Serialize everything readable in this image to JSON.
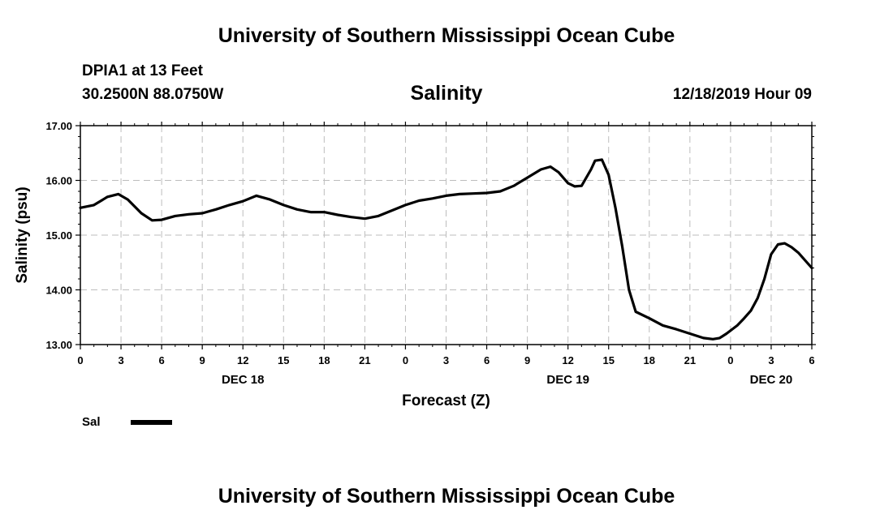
{
  "header": {
    "title": "University of Southern Mississippi Ocean Cube",
    "station": "DPIA1 at 13 Feet",
    "coords": "30.2500N 88.0750W",
    "datetime": "12/18/2019 Hour 09"
  },
  "footer": {
    "title": "University of Southern Mississippi Ocean Cube"
  },
  "chart_data": {
    "type": "line",
    "title": "Salinity",
    "xlabel": "Forecast (Z)",
    "ylabel": "Salinity (psu)",
    "ylim": [
      13.0,
      17.0
    ],
    "yticks": [
      "13.00",
      "14.00",
      "15.00",
      "16.00",
      "17.00"
    ],
    "xlim": [
      0,
      54
    ],
    "xticks": [
      "0",
      "3",
      "6",
      "9",
      "12",
      "15",
      "18",
      "21",
      "0",
      "3",
      "6",
      "9",
      "12",
      "15",
      "18",
      "21",
      "0",
      "3",
      "6"
    ],
    "day_labels": [
      {
        "label": "DEC 18",
        "hour": 12
      },
      {
        "label": "DEC 19",
        "hour": 36
      },
      {
        "label": "DEC 20",
        "hour": 51
      }
    ],
    "grid": true,
    "legend": {
      "label": "Sal",
      "position": "bottom-left"
    },
    "series": [
      {
        "name": "Sal",
        "color": "#000000",
        "x": [
          0,
          1,
          2,
          2.8,
          3.5,
          4.5,
          5.3,
          6,
          7,
          8,
          9,
          10,
          11,
          12,
          13,
          14,
          15,
          16,
          17,
          18,
          19,
          20,
          21,
          22,
          23,
          24,
          25,
          26,
          27,
          28,
          29,
          30,
          31,
          32,
          33,
          34,
          34.7,
          35.3,
          36,
          36.5,
          37,
          37.7,
          38,
          38.5,
          39,
          39.5,
          40,
          40.5,
          41,
          42,
          43,
          44,
          45,
          46,
          46.7,
          47.2,
          47.7,
          48.5,
          49,
          49.5,
          50,
          50.5,
          51,
          51.5,
          52,
          52.5,
          53,
          54
        ],
        "y": [
          15.5,
          15.55,
          15.7,
          15.75,
          15.65,
          15.4,
          15.27,
          15.28,
          15.35,
          15.38,
          15.4,
          15.47,
          15.55,
          15.62,
          15.72,
          15.65,
          15.55,
          15.47,
          15.42,
          15.42,
          15.37,
          15.33,
          15.3,
          15.35,
          15.45,
          15.55,
          15.63,
          15.67,
          15.72,
          15.75,
          15.76,
          15.77,
          15.8,
          15.9,
          16.05,
          16.2,
          16.25,
          16.15,
          15.95,
          15.89,
          15.9,
          16.2,
          16.36,
          16.38,
          16.1,
          15.5,
          14.8,
          14.0,
          13.6,
          13.48,
          13.35,
          13.28,
          13.2,
          13.12,
          13.1,
          13.12,
          13.2,
          13.35,
          13.48,
          13.62,
          13.85,
          14.2,
          14.65,
          14.83,
          14.85,
          14.78,
          14.68,
          14.4
        ]
      }
    ]
  }
}
